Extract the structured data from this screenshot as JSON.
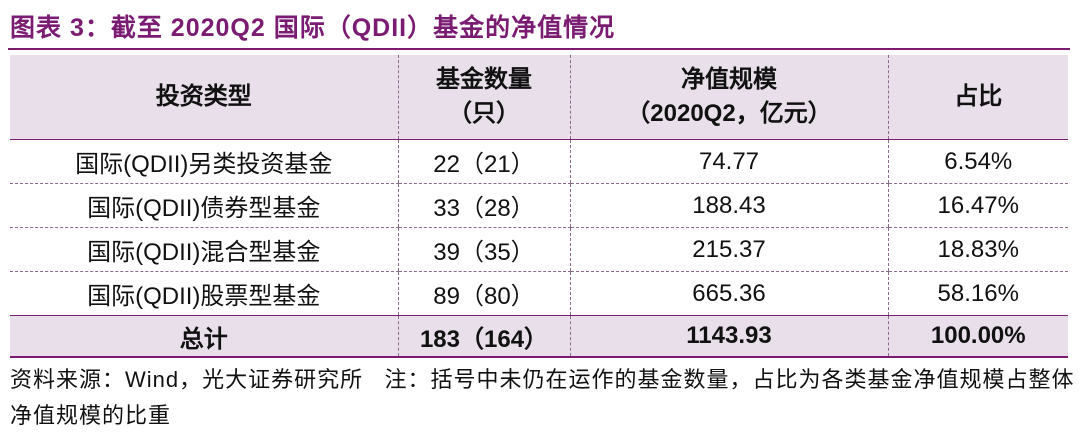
{
  "header": {
    "title": "图表 3：截至 2020Q2 国际（QDII）基金的净值情况"
  },
  "table": {
    "columns": [
      [
        "投资类型"
      ],
      [
        "基金数量",
        "（只）"
      ],
      [
        "净值规模",
        "（2020Q2，亿元）"
      ],
      [
        "占比"
      ]
    ],
    "rows": [
      [
        "国际(QDII)另类投资基金",
        "22（21）",
        "74.77",
        "6.54%"
      ],
      [
        "国际(QDII)债券型基金",
        "33（28）",
        "188.43",
        "16.47%"
      ],
      [
        "国际(QDII)混合型基金",
        "39（35）",
        "215.37",
        "18.83%"
      ],
      [
        "国际(QDII)股票型基金",
        "89（80）",
        "665.36",
        "58.16%"
      ]
    ],
    "total": [
      "总计",
      "183（164）",
      "1143.93",
      "100.00%"
    ]
  },
  "footer": {
    "source": "资料来源：Wind，光大证券研究所",
    "note": "注：括号中未仍在运作的基金数量，占比为各类基金净值规模占整体净值规模的比重"
  }
}
